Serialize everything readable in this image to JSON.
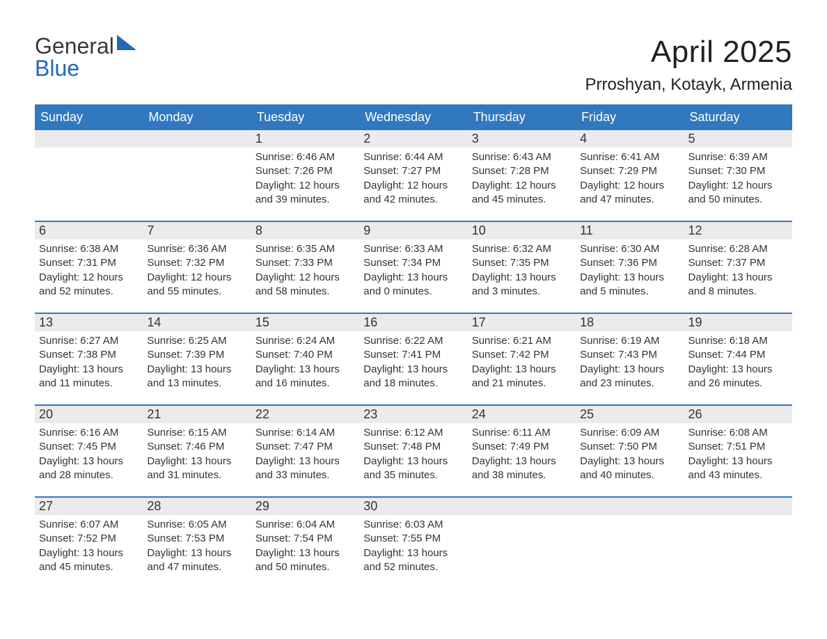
{
  "brand": {
    "general": "General",
    "blue": "Blue"
  },
  "title": "April 2025",
  "location": "Prroshyan, Kotayk, Armenia",
  "colors": {
    "header_bg": "#3178bf",
    "header_text": "#ffffff",
    "row_accent": "#3178bf",
    "daynum_bg": "#ebebeb",
    "text": "#333333",
    "brand_blue": "#2269b3",
    "page_bg": "#ffffff"
  },
  "weekdays": [
    "Sunday",
    "Monday",
    "Tuesday",
    "Wednesday",
    "Thursday",
    "Friday",
    "Saturday"
  ],
  "weeks": [
    [
      null,
      null,
      {
        "n": "1",
        "sr": "Sunrise: 6:46 AM",
        "ss": "Sunset: 7:26 PM",
        "d1": "Daylight: 12 hours",
        "d2": "and 39 minutes."
      },
      {
        "n": "2",
        "sr": "Sunrise: 6:44 AM",
        "ss": "Sunset: 7:27 PM",
        "d1": "Daylight: 12 hours",
        "d2": "and 42 minutes."
      },
      {
        "n": "3",
        "sr": "Sunrise: 6:43 AM",
        "ss": "Sunset: 7:28 PM",
        "d1": "Daylight: 12 hours",
        "d2": "and 45 minutes."
      },
      {
        "n": "4",
        "sr": "Sunrise: 6:41 AM",
        "ss": "Sunset: 7:29 PM",
        "d1": "Daylight: 12 hours",
        "d2": "and 47 minutes."
      },
      {
        "n": "5",
        "sr": "Sunrise: 6:39 AM",
        "ss": "Sunset: 7:30 PM",
        "d1": "Daylight: 12 hours",
        "d2": "and 50 minutes."
      }
    ],
    [
      {
        "n": "6",
        "sr": "Sunrise: 6:38 AM",
        "ss": "Sunset: 7:31 PM",
        "d1": "Daylight: 12 hours",
        "d2": "and 52 minutes."
      },
      {
        "n": "7",
        "sr": "Sunrise: 6:36 AM",
        "ss": "Sunset: 7:32 PM",
        "d1": "Daylight: 12 hours",
        "d2": "and 55 minutes."
      },
      {
        "n": "8",
        "sr": "Sunrise: 6:35 AM",
        "ss": "Sunset: 7:33 PM",
        "d1": "Daylight: 12 hours",
        "d2": "and 58 minutes."
      },
      {
        "n": "9",
        "sr": "Sunrise: 6:33 AM",
        "ss": "Sunset: 7:34 PM",
        "d1": "Daylight: 13 hours",
        "d2": "and 0 minutes."
      },
      {
        "n": "10",
        "sr": "Sunrise: 6:32 AM",
        "ss": "Sunset: 7:35 PM",
        "d1": "Daylight: 13 hours",
        "d2": "and 3 minutes."
      },
      {
        "n": "11",
        "sr": "Sunrise: 6:30 AM",
        "ss": "Sunset: 7:36 PM",
        "d1": "Daylight: 13 hours",
        "d2": "and 5 minutes."
      },
      {
        "n": "12",
        "sr": "Sunrise: 6:28 AM",
        "ss": "Sunset: 7:37 PM",
        "d1": "Daylight: 13 hours",
        "d2": "and 8 minutes."
      }
    ],
    [
      {
        "n": "13",
        "sr": "Sunrise: 6:27 AM",
        "ss": "Sunset: 7:38 PM",
        "d1": "Daylight: 13 hours",
        "d2": "and 11 minutes."
      },
      {
        "n": "14",
        "sr": "Sunrise: 6:25 AM",
        "ss": "Sunset: 7:39 PM",
        "d1": "Daylight: 13 hours",
        "d2": "and 13 minutes."
      },
      {
        "n": "15",
        "sr": "Sunrise: 6:24 AM",
        "ss": "Sunset: 7:40 PM",
        "d1": "Daylight: 13 hours",
        "d2": "and 16 minutes."
      },
      {
        "n": "16",
        "sr": "Sunrise: 6:22 AM",
        "ss": "Sunset: 7:41 PM",
        "d1": "Daylight: 13 hours",
        "d2": "and 18 minutes."
      },
      {
        "n": "17",
        "sr": "Sunrise: 6:21 AM",
        "ss": "Sunset: 7:42 PM",
        "d1": "Daylight: 13 hours",
        "d2": "and 21 minutes."
      },
      {
        "n": "18",
        "sr": "Sunrise: 6:19 AM",
        "ss": "Sunset: 7:43 PM",
        "d1": "Daylight: 13 hours",
        "d2": "and 23 minutes."
      },
      {
        "n": "19",
        "sr": "Sunrise: 6:18 AM",
        "ss": "Sunset: 7:44 PM",
        "d1": "Daylight: 13 hours",
        "d2": "and 26 minutes."
      }
    ],
    [
      {
        "n": "20",
        "sr": "Sunrise: 6:16 AM",
        "ss": "Sunset: 7:45 PM",
        "d1": "Daylight: 13 hours",
        "d2": "and 28 minutes."
      },
      {
        "n": "21",
        "sr": "Sunrise: 6:15 AM",
        "ss": "Sunset: 7:46 PM",
        "d1": "Daylight: 13 hours",
        "d2": "and 31 minutes."
      },
      {
        "n": "22",
        "sr": "Sunrise: 6:14 AM",
        "ss": "Sunset: 7:47 PM",
        "d1": "Daylight: 13 hours",
        "d2": "and 33 minutes."
      },
      {
        "n": "23",
        "sr": "Sunrise: 6:12 AM",
        "ss": "Sunset: 7:48 PM",
        "d1": "Daylight: 13 hours",
        "d2": "and 35 minutes."
      },
      {
        "n": "24",
        "sr": "Sunrise: 6:11 AM",
        "ss": "Sunset: 7:49 PM",
        "d1": "Daylight: 13 hours",
        "d2": "and 38 minutes."
      },
      {
        "n": "25",
        "sr": "Sunrise: 6:09 AM",
        "ss": "Sunset: 7:50 PM",
        "d1": "Daylight: 13 hours",
        "d2": "and 40 minutes."
      },
      {
        "n": "26",
        "sr": "Sunrise: 6:08 AM",
        "ss": "Sunset: 7:51 PM",
        "d1": "Daylight: 13 hours",
        "d2": "and 43 minutes."
      }
    ],
    [
      {
        "n": "27",
        "sr": "Sunrise: 6:07 AM",
        "ss": "Sunset: 7:52 PM",
        "d1": "Daylight: 13 hours",
        "d2": "and 45 minutes."
      },
      {
        "n": "28",
        "sr": "Sunrise: 6:05 AM",
        "ss": "Sunset: 7:53 PM",
        "d1": "Daylight: 13 hours",
        "d2": "and 47 minutes."
      },
      {
        "n": "29",
        "sr": "Sunrise: 6:04 AM",
        "ss": "Sunset: 7:54 PM",
        "d1": "Daylight: 13 hours",
        "d2": "and 50 minutes."
      },
      {
        "n": "30",
        "sr": "Sunrise: 6:03 AM",
        "ss": "Sunset: 7:55 PM",
        "d1": "Daylight: 13 hours",
        "d2": "and 52 minutes."
      },
      null,
      null,
      null
    ]
  ]
}
